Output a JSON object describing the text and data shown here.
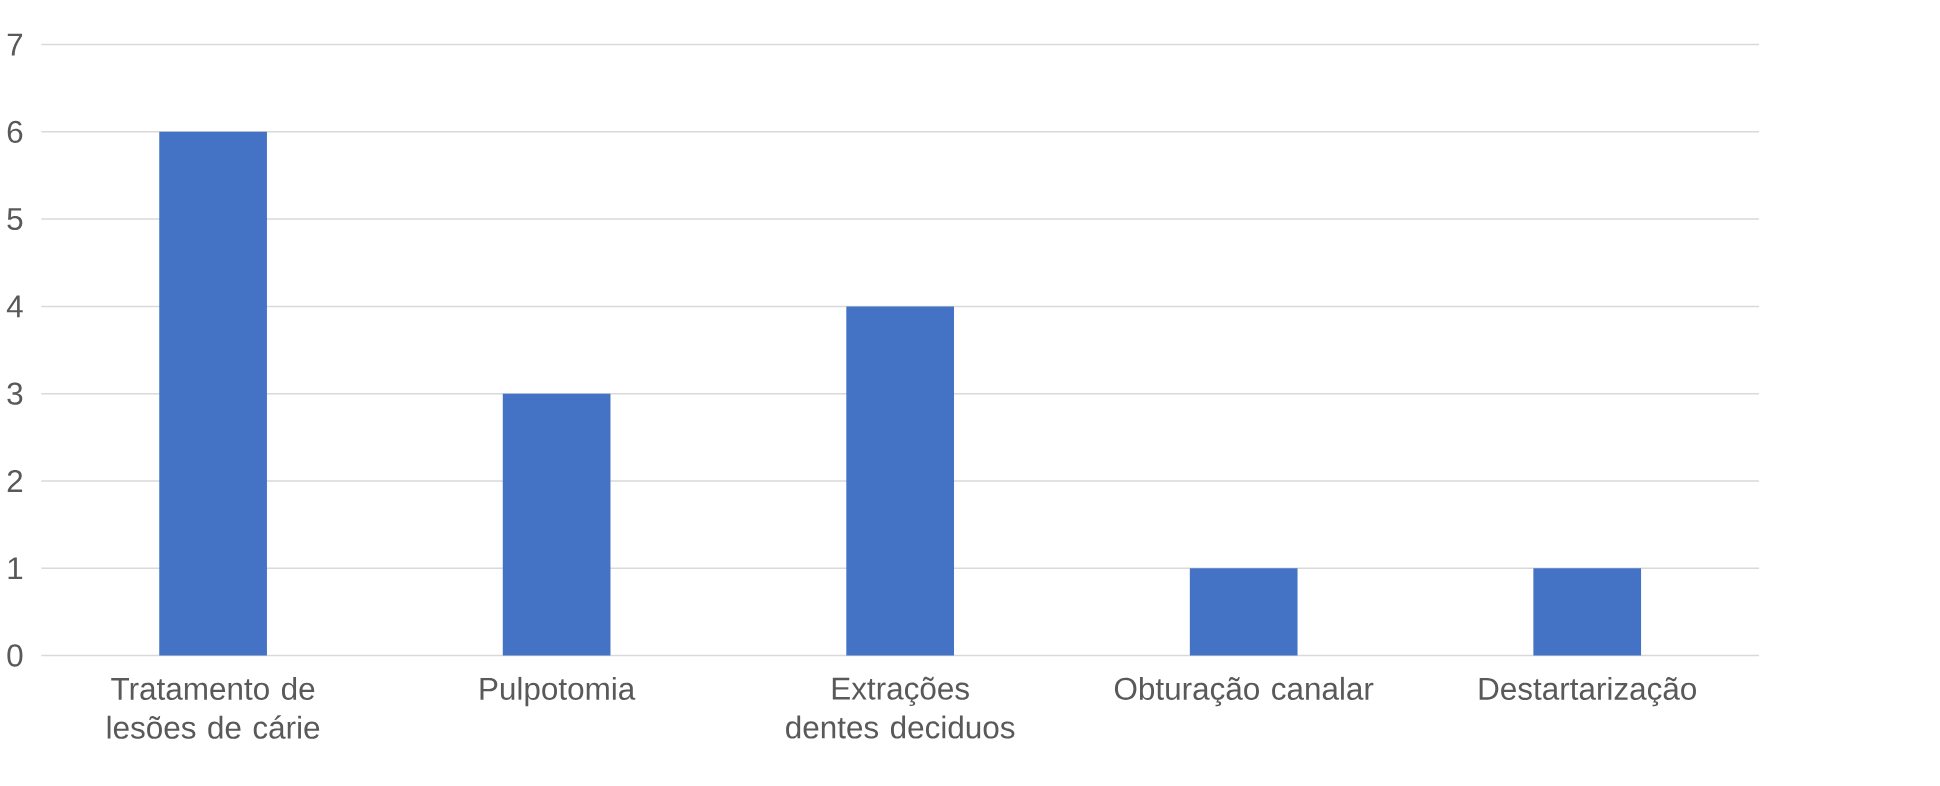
{
  "chart_data": {
    "type": "bar",
    "categories": [
      "Tratamento de lesões de cárie",
      "Pulpotomia",
      "Extrações dentes deciduos",
      "Obturação canalar",
      "Destartarização"
    ],
    "values": [
      6,
      3,
      4,
      1,
      1
    ],
    "color": "#4472c4",
    "ylim": [
      0,
      7
    ],
    "yticks": [
      0,
      1,
      2,
      3,
      4,
      5,
      6,
      7
    ],
    "grid": "y"
  }
}
